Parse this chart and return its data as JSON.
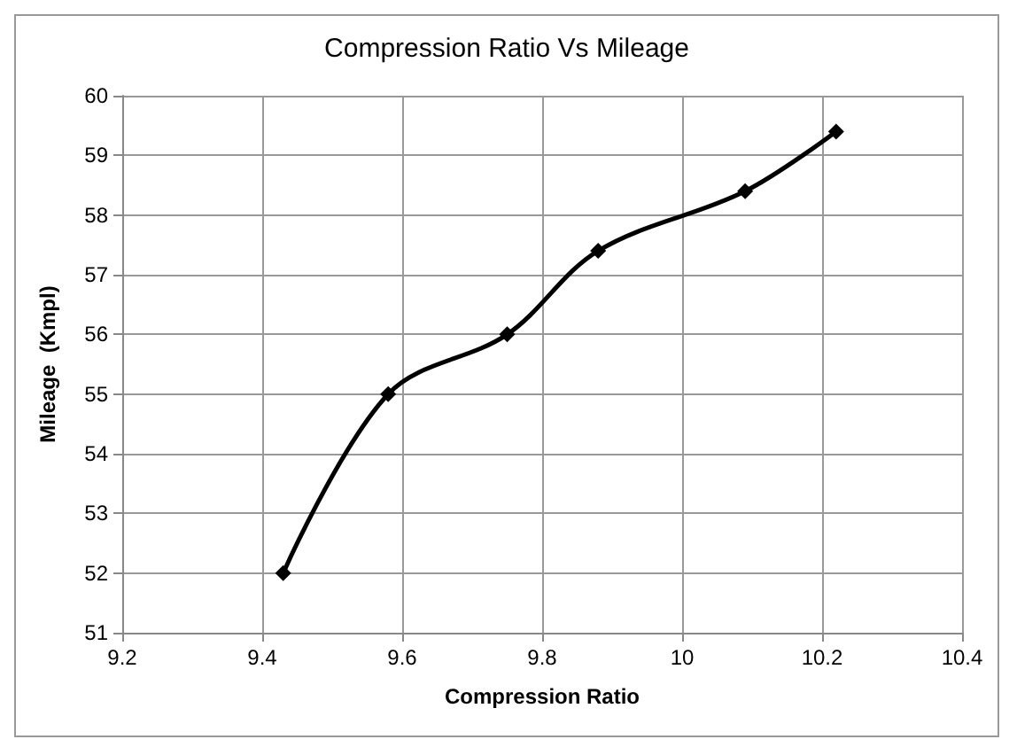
{
  "chart_data": {
    "type": "line",
    "title": "Compression Ratio Vs Mileage",
    "xlabel": "Compression Ratio",
    "ylabel": "Mileage  (Kmpl)",
    "x": [
      9.43,
      9.58,
      9.75,
      9.88,
      10.09,
      10.22
    ],
    "series": [
      {
        "color": "#000000",
        "values": [
          52,
          55,
          56,
          57.4,
          58.4,
          59.4
        ]
      }
    ],
    "xlim": [
      9.2,
      10.4
    ],
    "xticks": [
      9.2,
      9.4,
      9.6,
      9.8,
      10,
      10.2,
      10.4
    ],
    "ylim": [
      51,
      60
    ],
    "yticks": [
      51,
      52,
      53,
      54,
      55,
      56,
      57,
      58,
      59,
      60
    ],
    "grid": true,
    "marker": "diamond",
    "line_style": "solid"
  }
}
